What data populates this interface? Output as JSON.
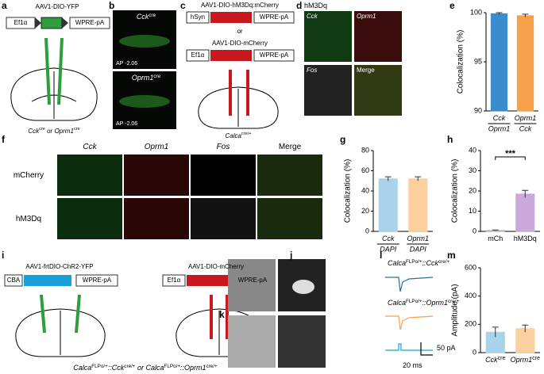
{
  "labels": [
    [
      "a"
    ],
    [
      "b"
    ],
    [
      "c"
    ],
    [
      "d"
    ],
    [
      "e"
    ],
    [
      "f"
    ],
    [
      "g"
    ],
    [
      "h"
    ],
    [
      "i"
    ],
    [
      "j"
    ],
    [
      "k"
    ],
    [
      "l"
    ],
    [
      "m"
    ],
    [
      "AAV1-DIO-YFP"
    ],
    [
      "Ef1α"
    ],
    [
      "WPRE-pA"
    ],
    [
      "Cck",
      "cre",
      " or ",
      "Oprm1",
      "cre"
    ],
    [
      "Cck",
      "cre"
    ],
    [
      "AP -2.06"
    ],
    [
      "Oprm1",
      "cre"
    ],
    [
      "AP -2.06"
    ],
    [
      "AAV1-DIO-hM3Dq:mCherry"
    ],
    [
      "hSyn"
    ],
    [
      "WPRE-pA"
    ],
    [
      "or"
    ],
    [
      "AAV1-DIO-mCherry"
    ],
    [
      "Ef1α"
    ],
    [
      "WPRE-pA"
    ],
    [
      "Calca",
      "cre/+"
    ],
    [
      "hM3Dq"
    ],
    [
      "Cck"
    ],
    [
      "Oprm1"
    ],
    [
      "Fos"
    ],
    [
      "Merge"
    ],
    [
      "Cck"
    ],
    [
      "Oprm1"
    ],
    [
      "Fos"
    ],
    [
      "Merge"
    ],
    [
      "mCherry"
    ],
    [
      "hM3Dq"
    ],
    [
      "AAV1-frtDIO-ChR2-YFP"
    ],
    [
      "CBA"
    ],
    [
      "WPRE-pA"
    ],
    [
      "AAV1-DIO-mCherry"
    ],
    [
      "Ef1α"
    ],
    [
      "WPRE-pA"
    ],
    [
      "Calca",
      "FLPo/+",
      "::",
      "Cck",
      "cre/+",
      " or ",
      "Calca",
      "FLPo/+",
      "::",
      "Oprm1",
      "cre/+"
    ],
    [
      "Calca",
      "FLPo/+",
      "::",
      "Cck",
      "cre/+"
    ],
    [
      "Calca",
      "FLPo/+",
      "::",
      "Oprm1",
      "cre/+"
    ],
    [
      "50 pA"
    ],
    [
      "20 ms"
    ]
  ],
  "chart_data": [
    {
      "type": "bar",
      "ylabel": "Colocalization (%)",
      "categories": [
        "Cck",
        "Oprm1"
      ],
      "sublabels": [
        "Oprm1",
        "Cck"
      ],
      "values": [
        99.9,
        99.7
      ],
      "errors": [
        0.1,
        0.15
      ],
      "colors": [
        "#3b8ccc",
        "#f7a14a"
      ],
      "ylim": [
        90,
        100
      ],
      "yticks": [
        90,
        95,
        100
      ]
    },
    {
      "type": "bar",
      "ylabel": "Colocalization (%)",
      "categories": [
        "Cck",
        "Oprm1"
      ],
      "sublabels": [
        "DAPI",
        "DAPI"
      ],
      "values": [
        52,
        52
      ],
      "errors": [
        2,
        2
      ],
      "colors": [
        "#a9d3ea",
        "#fbcf9e"
      ],
      "ylim": [
        0,
        80
      ],
      "yticks": [
        0,
        20,
        40,
        60,
        80
      ]
    },
    {
      "type": "bar",
      "ylabel": "Colocalization (%)",
      "categories": [
        "mCh",
        "hM3Dq"
      ],
      "values": [
        0.5,
        18.5
      ],
      "errors": [
        0.2,
        1.8
      ],
      "colors": [
        "#bbbbbb",
        "#c9a9dc"
      ],
      "ylim": [
        0,
        40
      ],
      "yticks": [
        0,
        10,
        20,
        30,
        40
      ],
      "annotation": "***"
    },
    {
      "type": "bar",
      "ylabel": "Amplitude (pA)",
      "categories": [
        "Cck",
        "Oprm1"
      ],
      "superscripts": [
        "cre",
        "cre"
      ],
      "values": [
        145,
        170
      ],
      "errors": [
        35,
        25
      ],
      "colors": [
        "#a9d3ea",
        "#fbcf9e"
      ],
      "ylim": [
        0,
        600
      ],
      "yticks": [
        0,
        200,
        400,
        600
      ]
    }
  ]
}
